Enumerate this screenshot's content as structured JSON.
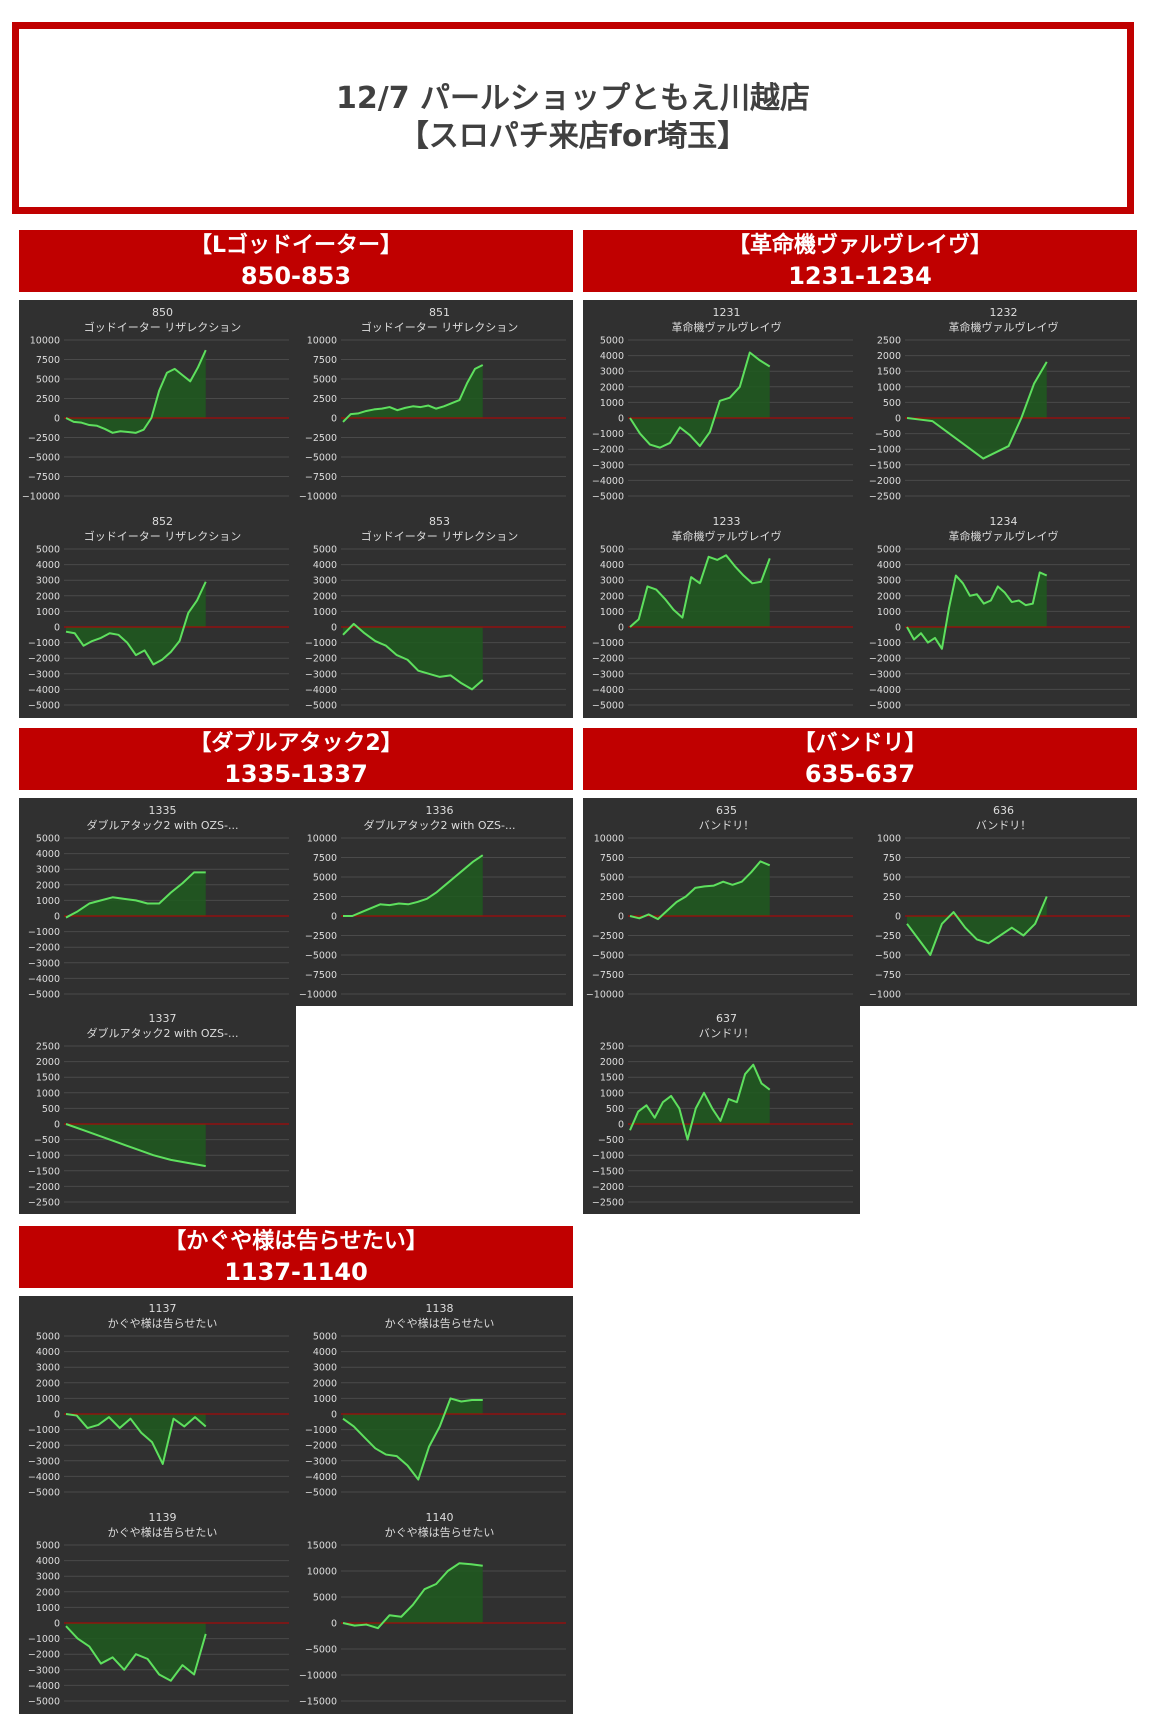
{
  "title": {
    "line1": "12/7 パールショップともえ川越店",
    "line2": "【スロパチ来店for埼玉】"
  },
  "colors": {
    "banner": "#c00000",
    "panel": "#303030",
    "line": "#5ee05e",
    "fill": "#1f5a1f",
    "zero": "#c00000",
    "grid": "#4a4a4a",
    "text": "#dddddd"
  },
  "groups": [
    {
      "name": "【Lゴッドイーター】",
      "range": "850-853"
    },
    {
      "name": "【革命機ヴァルヴレイヴ】",
      "range": "1231-1234"
    },
    {
      "name": "【ダブルアタック2】",
      "range": "1335-1337"
    },
    {
      "name": "【バンドリ】",
      "range": "635-637"
    },
    {
      "name": "【かぐや様は告らせたい】",
      "range": "1137-1140"
    }
  ],
  "chart_data": [
    {
      "type": "area",
      "id": "850",
      "subtitle": "ゴッドイーター リザレクション",
      "ylim": [
        -10000,
        10000
      ],
      "yticks": [
        10000,
        7500,
        5000,
        2500,
        0,
        -2500,
        -5000,
        -7500,
        -10000
      ],
      "values": [
        0,
        -500,
        -600,
        -900,
        -1000,
        -1400,
        -1900,
        -1700,
        -1800,
        -1900,
        -1500,
        0,
        3500,
        5800,
        6300,
        5500,
        4700,
        6500,
        8700
      ]
    },
    {
      "type": "area",
      "id": "851",
      "subtitle": "ゴッドイーター リザレクション",
      "ylim": [
        -10000,
        10000
      ],
      "yticks": [
        10000,
        7500,
        5000,
        2500,
        0,
        -2500,
        -5000,
        -7500,
        -10000
      ],
      "values": [
        -500,
        500,
        600,
        900,
        1100,
        1200,
        1400,
        1000,
        1300,
        1500,
        1400,
        1600,
        1200,
        1500,
        1900,
        2300,
        4500,
        6300,
        6800
      ]
    },
    {
      "type": "area",
      "id": "852",
      "subtitle": "ゴッドイーター リザレクション",
      "ylim": [
        -5000,
        5000
      ],
      "yticks": [
        5000,
        4000,
        3000,
        2000,
        1000,
        0,
        -1000,
        -2000,
        -3000,
        -4000,
        -5000
      ],
      "values": [
        -300,
        -400,
        -1200,
        -900,
        -700,
        -400,
        -500,
        -1000,
        -1800,
        -1500,
        -2400,
        -2100,
        -1600,
        -900,
        900,
        1700,
        2900
      ]
    },
    {
      "type": "area",
      "id": "853",
      "subtitle": "ゴッドイーター リザレクション",
      "ylim": [
        -5000,
        5000
      ],
      "yticks": [
        5000,
        4000,
        3000,
        2000,
        1000,
        0,
        -1000,
        -2000,
        -3000,
        -4000,
        -5000
      ],
      "values": [
        -500,
        200,
        -400,
        -900,
        -1200,
        -1800,
        -2100,
        -2800,
        -3000,
        -3200,
        -3100,
        -3600,
        -4000,
        -3400
      ]
    },
    {
      "type": "area",
      "id": "1231",
      "subtitle": "革命機ヴァルヴレイヴ",
      "ylim": [
        -5000,
        5000
      ],
      "yticks": [
        5000,
        4000,
        3000,
        2000,
        1000,
        0,
        -1000,
        -2000,
        -3000,
        -4000,
        -5000
      ],
      "values": [
        0,
        -1000,
        -1700,
        -1900,
        -1600,
        -600,
        -1100,
        -1800,
        -900,
        1100,
        1300,
        2000,
        4200,
        3700,
        3300
      ]
    },
    {
      "type": "area",
      "id": "1232",
      "subtitle": "革命機ヴァルヴレイヴ",
      "ylim": [
        -2500,
        2500
      ],
      "yticks": [
        2500,
        2000,
        1500,
        1000,
        500,
        0,
        -500,
        -1000,
        -1500,
        -2000,
        -2500
      ],
      "values": [
        0,
        -50,
        -100,
        -400,
        -700,
        -1000,
        -1300,
        -1100,
        -900,
        0,
        1100,
        1800
      ]
    },
    {
      "type": "area",
      "id": "1233",
      "subtitle": "革命機ヴァルヴレイヴ",
      "ylim": [
        -5000,
        5000
      ],
      "yticks": [
        5000,
        4000,
        3000,
        2000,
        1000,
        0,
        -1000,
        -2000,
        -3000,
        -4000,
        -5000
      ],
      "values": [
        0,
        500,
        2600,
        2400,
        1800,
        1100,
        600,
        3200,
        2800,
        4500,
        4300,
        4600,
        3900,
        3300,
        2800,
        2900,
        4400
      ]
    },
    {
      "type": "area",
      "id": "1234",
      "subtitle": "革命機ヴァルヴレイヴ",
      "ylim": [
        -5000,
        5000
      ],
      "yticks": [
        5000,
        4000,
        3000,
        2000,
        1000,
        0,
        -1000,
        -2000,
        -3000,
        -4000,
        -5000
      ],
      "values": [
        0,
        -800,
        -400,
        -1000,
        -700,
        -1400,
        1200,
        3300,
        2800,
        2000,
        2100,
        1500,
        1700,
        2600,
        2200,
        1600,
        1700,
        1400,
        1500,
        3500,
        3300
      ]
    },
    {
      "type": "area",
      "id": "1335",
      "subtitle": "ダブルアタック2 with OZS-...",
      "ylim": [
        -5000,
        5000
      ],
      "yticks": [
        5000,
        4000,
        3000,
        2000,
        1000,
        0,
        -1000,
        -2000,
        -3000,
        -4000,
        -5000
      ],
      "values": [
        -100,
        300,
        800,
        1000,
        1200,
        1100,
        1000,
        800,
        800,
        1500,
        2100,
        2800,
        2800
      ]
    },
    {
      "type": "area",
      "id": "1336",
      "subtitle": "ダブルアタック2 with OZS-...",
      "ylim": [
        -10000,
        10000
      ],
      "yticks": [
        10000,
        7500,
        5000,
        2500,
        0,
        -2500,
        -5000,
        -7500,
        -10000
      ],
      "values": [
        0,
        0,
        500,
        1000,
        1500,
        1400,
        1600,
        1500,
        1800,
        2200,
        3000,
        4000,
        5000,
        6000,
        7000,
        7800
      ]
    },
    {
      "type": "area",
      "id": "1337",
      "subtitle": "ダブルアタック2 with OZS-...",
      "ylim": [
        -2500,
        2500
      ],
      "yticks": [
        2500,
        2000,
        1500,
        1000,
        500,
        0,
        -500,
        -1000,
        -1500,
        -2000,
        -2500
      ],
      "values": [
        0,
        -200,
        -400,
        -600,
        -800,
        -1000,
        -1150,
        -1250,
        -1350
      ]
    },
    {
      "type": "area",
      "id": "635",
      "subtitle": "バンドリ！",
      "ylim": [
        -10000,
        10000
      ],
      "yticks": [
        10000,
        7500,
        5000,
        2500,
        0,
        -2500,
        -5000,
        -7500,
        -10000
      ],
      "values": [
        0,
        -300,
        200,
        -400,
        700,
        1800,
        2500,
        3600,
        3800,
        3900,
        4400,
        4000,
        4400,
        5600,
        7000,
        6500
      ]
    },
    {
      "type": "area",
      "id": "636",
      "subtitle": "バンドリ！",
      "ylim": [
        -1000,
        1000
      ],
      "yticks": [
        1000,
        750,
        500,
        250,
        0,
        -250,
        -500,
        -750,
        -1000
      ],
      "values": [
        -100,
        -300,
        -500,
        -100,
        50,
        -150,
        -300,
        -350,
        -250,
        -150,
        -250,
        -100,
        250
      ]
    },
    {
      "type": "area",
      "id": "637",
      "subtitle": "バンドリ！",
      "ylim": [
        -2500,
        2500
      ],
      "yticks": [
        2500,
        2000,
        1500,
        1000,
        500,
        0,
        -500,
        -1000,
        -1500,
        -2000,
        -2500
      ],
      "values": [
        -200,
        400,
        600,
        200,
        700,
        900,
        500,
        -500,
        500,
        1000,
        500,
        100,
        800,
        700,
        1600,
        1900,
        1300,
        1100
      ]
    },
    {
      "type": "area",
      "id": "1137",
      "subtitle": "かぐや様は告らせたい",
      "ylim": [
        -5000,
        5000
      ],
      "yticks": [
        5000,
        4000,
        3000,
        2000,
        1000,
        0,
        -1000,
        -2000,
        -3000,
        -4000,
        -5000
      ],
      "values": [
        0,
        -100,
        -900,
        -700,
        -200,
        -900,
        -300,
        -1200,
        -1800,
        -3200,
        -300,
        -800,
        -200,
        -800
      ]
    },
    {
      "type": "area",
      "id": "1138",
      "subtitle": "かぐや様は告らせたい",
      "ylim": [
        -5000,
        5000
      ],
      "yticks": [
        5000,
        4000,
        3000,
        2000,
        1000,
        0,
        -1000,
        -2000,
        -3000,
        -4000,
        -5000
      ],
      "values": [
        -300,
        -800,
        -1500,
        -2200,
        -2600,
        -2700,
        -3300,
        -4200,
        -2100,
        -800,
        1000,
        800,
        900,
        900
      ]
    },
    {
      "type": "area",
      "id": "1139",
      "subtitle": "かぐや様は告らせたい",
      "ylim": [
        -5000,
        5000
      ],
      "yticks": [
        5000,
        4000,
        3000,
        2000,
        1000,
        0,
        -1000,
        -2000,
        -3000,
        -4000,
        -5000
      ],
      "values": [
        -200,
        -1000,
        -1500,
        -2600,
        -2200,
        -3000,
        -2000,
        -2300,
        -3300,
        -3700,
        -2700,
        -3300,
        -700
      ]
    },
    {
      "type": "area",
      "id": "1140",
      "subtitle": "かぐや様は告らせたい",
      "ylim": [
        -15000,
        15000
      ],
      "yticks": [
        15000,
        10000,
        5000,
        0,
        -5000,
        -10000,
        -15000
      ],
      "values": [
        0,
        -500,
        -300,
        -1000,
        1500,
        1200,
        3500,
        6500,
        7500,
        10000,
        11500,
        11300,
        11000
      ]
    }
  ]
}
